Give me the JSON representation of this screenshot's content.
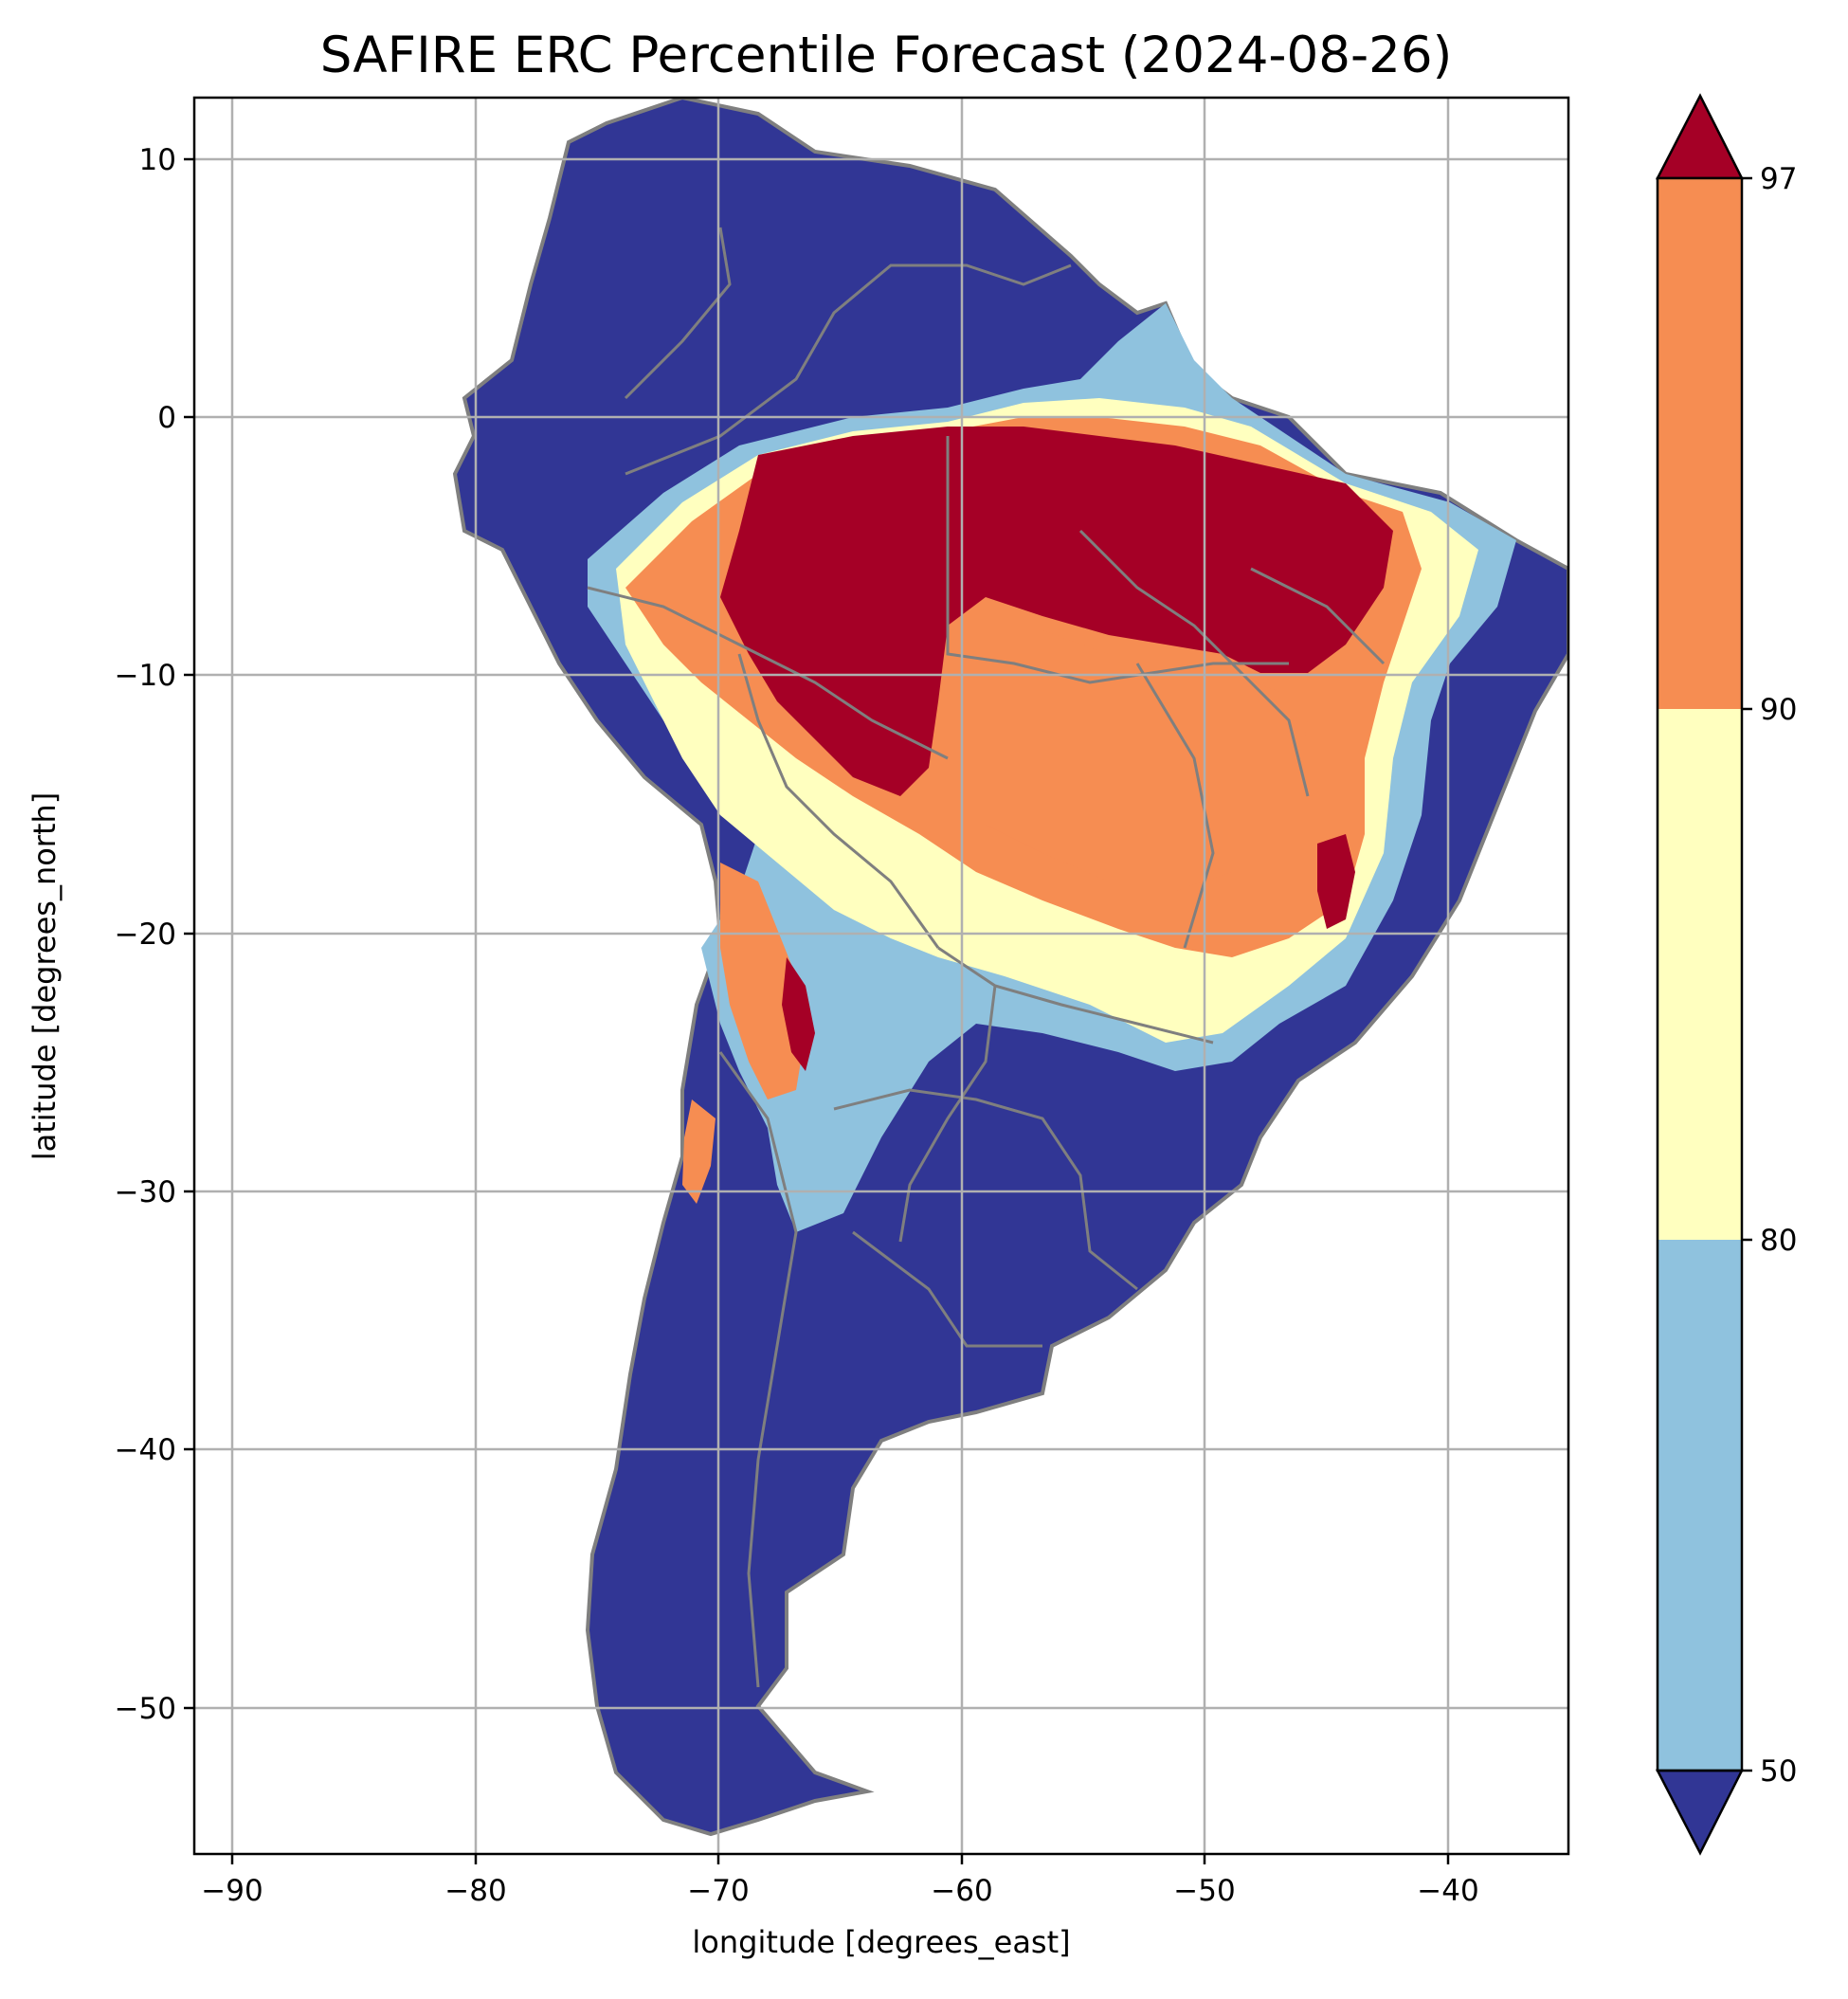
{
  "title": "SAFIRE ERC Percentile Forecast (2024-08-26)",
  "xlabel": "longitude [degrees_east]",
  "ylabel": "latitude [degrees_north]",
  "x_ticks": [
    "−90",
    "−80",
    "−70",
    "−60",
    "−50",
    "−40"
  ],
  "y_ticks": [
    "10",
    "0",
    "−10",
    "−20",
    "−30",
    "−40",
    "−50"
  ],
  "colorbar": {
    "ticks": [
      "97",
      "90",
      "80",
      "50"
    ],
    "bands": [
      {
        "range": "<50",
        "color": "#313695"
      },
      {
        "range": "50-80",
        "color": "#8fc2de"
      },
      {
        "range": "80-90",
        "color": "#ffffbf"
      },
      {
        "range": "90-97",
        "color": "#f68d52"
      },
      {
        "range": ">97",
        "color": "#a50026"
      }
    ]
  },
  "colors": {
    "boundary": "#7f7f7f",
    "grid": "#b0b0b0"
  },
  "chart_data": {
    "type": "heatmap",
    "title": "SAFIRE ERC Percentile Forecast (2024-08-26)",
    "xlabel": "longitude [degrees_east]",
    "ylabel": "latitude [degrees_north]",
    "xlim": [
      -91.6,
      -35
    ],
    "ylim": [
      -55.9,
      12.4
    ],
    "grid": true,
    "levels": [
      50,
      80,
      90,
      97
    ],
    "colorbar_extend": "both"
  }
}
